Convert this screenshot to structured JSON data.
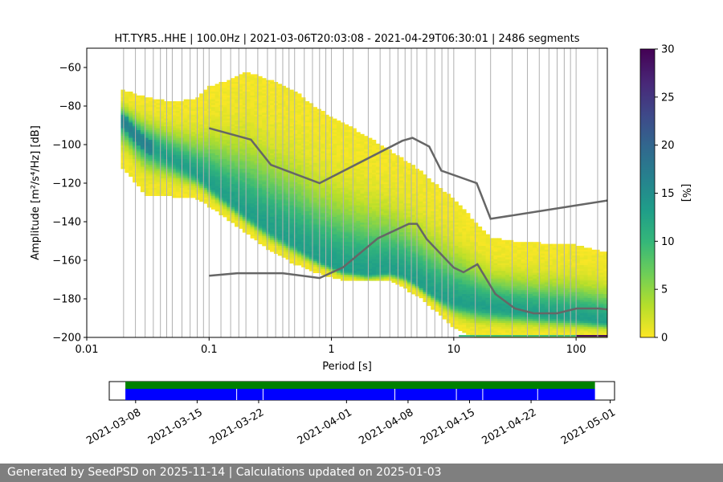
{
  "footer": {
    "text": "Generated by SeedPSD on 2025-11-14 | Calculations updated on 2025-01-03"
  },
  "colors": {
    "cmap": [
      "#fde725",
      "#b5de2b",
      "#6ece58",
      "#35b779",
      "#1f9e89",
      "#26828e",
      "#31688e",
      "#3e4989",
      "#482878",
      "#440154"
    ],
    "model_line": "#666666",
    "grid": "#b0b0b0",
    "availability_data": "#008000",
    "availability_segments": "#0000ff"
  },
  "chart_data": [
    {
      "type": "heatmap",
      "title": "HT.TYR5..HHE | 100.0Hz | 2021-03-06T20:03:08 - 2021-04-29T06:30:01 | 2486 segments",
      "xlabel": "Period [s]",
      "ylabel": "Amplitude [m²/s⁴/Hz] [dB]",
      "x_scale": "log",
      "xlim": [
        0.01,
        180
      ],
      "ylim": [
        -200,
        -50
      ],
      "x_ticks": [
        0.01,
        0.1,
        1,
        10,
        100
      ],
      "x_tick_labels": [
        "0.01",
        "0.1",
        "1",
        "10",
        "100"
      ],
      "y_ticks": [
        -200,
        -180,
        -160,
        -140,
        -120,
        -100,
        -80,
        -60
      ],
      "grid": "vertical lines at period bins",
      "period_grid": [
        0.02,
        0.025,
        0.03,
        0.035,
        0.04,
        0.045,
        0.05,
        0.06,
        0.07,
        0.08,
        0.09,
        0.1,
        0.125,
        0.15,
        0.175,
        0.2,
        0.25,
        0.3,
        0.35,
        0.4,
        0.45,
        0.5,
        0.6,
        0.7,
        0.8,
        0.9,
        1,
        1.25,
        1.5,
        2,
        2.5,
        3,
        3.5,
        4,
        4.5,
        5,
        6,
        7,
        8,
        9,
        10,
        15,
        20,
        30,
        40,
        50,
        60,
        70,
        80,
        90,
        100,
        150
      ],
      "colorbar": {
        "label": "[%]",
        "range": [
          0,
          30
        ],
        "ticks": [
          0,
          5,
          10,
          15,
          20,
          25,
          30
        ]
      },
      "psd_mode": [
        [
          0.02,
          -88
        ],
        [
          0.025,
          -95
        ],
        [
          0.03,
          -100
        ],
        [
          0.05,
          -108
        ],
        [
          0.08,
          -116
        ],
        [
          0.1,
          -121
        ],
        [
          0.15,
          -130
        ],
        [
          0.2,
          -136
        ],
        [
          0.3,
          -144
        ],
        [
          0.5,
          -152
        ],
        [
          0.8,
          -160
        ],
        [
          1.2,
          -165
        ],
        [
          2,
          -167
        ],
        [
          3,
          -166
        ],
        [
          4,
          -168
        ],
        [
          5,
          -172
        ],
        [
          7,
          -178
        ],
        [
          10,
          -182
        ],
        [
          20,
          -185
        ],
        [
          50,
          -188
        ],
        [
          100,
          -190
        ],
        [
          180,
          -192
        ]
      ],
      "psd_upper": [
        [
          0.02,
          -72
        ],
        [
          0.03,
          -75
        ],
        [
          0.05,
          -78
        ],
        [
          0.08,
          -76
        ],
        [
          0.1,
          -70
        ],
        [
          0.15,
          -66
        ],
        [
          0.2,
          -62
        ],
        [
          0.3,
          -66
        ],
        [
          0.5,
          -72
        ],
        [
          0.8,
          -82
        ],
        [
          1.2,
          -88
        ],
        [
          2,
          -96
        ],
        [
          3,
          -103
        ],
        [
          5,
          -112
        ],
        [
          7,
          -120
        ],
        [
          10,
          -128
        ],
        [
          15,
          -140
        ],
        [
          20,
          -148
        ],
        [
          30,
          -150
        ],
        [
          50,
          -151
        ],
        [
          100,
          -152
        ],
        [
          180,
          -156
        ]
      ],
      "psd_lower": [
        [
          0.02,
          -112
        ],
        [
          0.03,
          -126
        ],
        [
          0.05,
          -127
        ],
        [
          0.08,
          -128
        ],
        [
          0.1,
          -132
        ],
        [
          0.15,
          -140
        ],
        [
          0.2,
          -146
        ],
        [
          0.3,
          -154
        ],
        [
          0.5,
          -162
        ],
        [
          0.8,
          -167
        ],
        [
          1.2,
          -170
        ],
        [
          2,
          -170
        ],
        [
          3,
          -171
        ],
        [
          5,
          -178
        ],
        [
          7,
          -186
        ],
        [
          10,
          -195
        ],
        [
          15,
          -200
        ],
        [
          50,
          -200
        ],
        [
          180,
          -200
        ]
      ],
      "nhnm": [
        [
          0.1,
          -91.5
        ],
        [
          0.22,
          -97.4
        ],
        [
          0.32,
          -110.5
        ],
        [
          0.8,
          -120
        ],
        [
          3.8,
          -98
        ],
        [
          4.6,
          -96.5
        ],
        [
          6.3,
          -101
        ],
        [
          7.9,
          -113.5
        ],
        [
          15.4,
          -120
        ],
        [
          20,
          -138.5
        ],
        [
          180,
          -129
        ]
      ],
      "nlnm": [
        [
          0.1,
          -168
        ],
        [
          0.17,
          -166.7
        ],
        [
          0.4,
          -166.7
        ],
        [
          0.8,
          -169.2
        ],
        [
          1.24,
          -163.7
        ],
        [
          2.4,
          -148.6
        ],
        [
          4.3,
          -141.1
        ],
        [
          5.0,
          -141.1
        ],
        [
          6.0,
          -149
        ],
        [
          10,
          -163.8
        ],
        [
          12,
          -166.2
        ],
        [
          15.6,
          -162.1
        ],
        [
          21.9,
          -177.5
        ],
        [
          31.6,
          -185
        ],
        [
          45,
          -187.5
        ],
        [
          70,
          -187.5
        ],
        [
          101,
          -185
        ],
        [
          154,
          -185
        ],
        [
          180,
          -185.5
        ]
      ]
    },
    {
      "type": "availability",
      "date_labels": [
        "2021-03-08",
        "2021-03-15",
        "2021-03-22",
        "2021-04-01",
        "2021-04-08",
        "2021-04-15",
        "2021-04-22",
        "2021-05-01"
      ],
      "date_ticks": [
        "2021-03-08",
        "2021-03-15",
        "2021-03-22",
        "2021-04-01",
        "2021-04-08",
        "2021-04-15",
        "2021-04-22",
        "2021-05-01"
      ],
      "xlim": [
        "2021-03-05T00:00:00",
        "2021-05-01T12:00:00"
      ],
      "data_span": [
        "2021-03-06T20:03:08",
        "2021-04-29T06:30:01"
      ],
      "segment_gaps": [
        "2021-03-19T12:00:00",
        "2021-03-22T12:00:00",
        "2021-04-06T12:00:00",
        "2021-04-13T12:00:00",
        "2021-04-16T12:00:00",
        "2021-04-22T18:00:00"
      ]
    }
  ]
}
